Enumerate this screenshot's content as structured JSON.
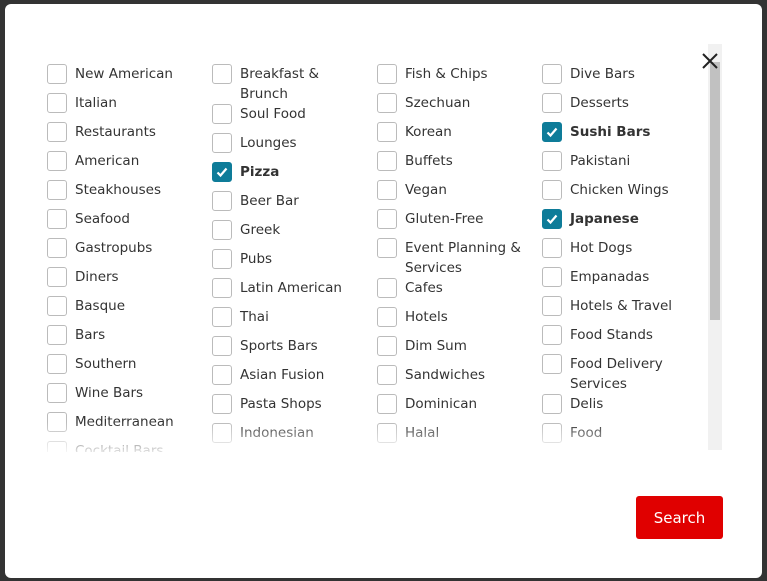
{
  "colors": {
    "accent": "#0e7c99",
    "search": "#e00000"
  },
  "columns": [
    [
      {
        "label": "New American",
        "checked": false
      },
      {
        "label": "Italian",
        "checked": false
      },
      {
        "label": "Restaurants",
        "checked": false
      },
      {
        "label": "American",
        "checked": false
      },
      {
        "label": "Steakhouses",
        "checked": false
      },
      {
        "label": "Seafood",
        "checked": false
      },
      {
        "label": "Gastropubs",
        "checked": false
      },
      {
        "label": "Diners",
        "checked": false
      },
      {
        "label": "Basque",
        "checked": false
      },
      {
        "label": "Bars",
        "checked": false
      },
      {
        "label": "Southern",
        "checked": false
      },
      {
        "label": "Wine Bars",
        "checked": false
      },
      {
        "label": "Mediterranean",
        "checked": false
      },
      {
        "label": "Cocktail Bars",
        "checked": false
      }
    ],
    [
      {
        "label": "Breakfast & Brunch",
        "checked": false
      },
      {
        "label": "Soul Food",
        "checked": false
      },
      {
        "label": "Lounges",
        "checked": false
      },
      {
        "label": "Pizza",
        "checked": true
      },
      {
        "label": "Beer Bar",
        "checked": false
      },
      {
        "label": "Greek",
        "checked": false
      },
      {
        "label": "Pubs",
        "checked": false
      },
      {
        "label": "Latin American",
        "checked": false
      },
      {
        "label": "Thai",
        "checked": false
      },
      {
        "label": "Sports Bars",
        "checked": false
      },
      {
        "label": "Asian Fusion",
        "checked": false
      },
      {
        "label": "Pasta Shops",
        "checked": false
      },
      {
        "label": "Indonesian",
        "checked": false
      }
    ],
    [
      {
        "label": "Fish & Chips",
        "checked": false
      },
      {
        "label": "Szechuan",
        "checked": false
      },
      {
        "label": "Korean",
        "checked": false
      },
      {
        "label": "Buffets",
        "checked": false
      },
      {
        "label": "Vegan",
        "checked": false
      },
      {
        "label": "Gluten-Free",
        "checked": false
      },
      {
        "label": "Event Planning & Services",
        "checked": false
      },
      {
        "label": "Cafes",
        "checked": false
      },
      {
        "label": "Hotels",
        "checked": false
      },
      {
        "label": "Dim Sum",
        "checked": false
      },
      {
        "label": "Sandwiches",
        "checked": false
      },
      {
        "label": "Dominican",
        "checked": false
      },
      {
        "label": "Halal",
        "checked": false
      }
    ],
    [
      {
        "label": "Dive Bars",
        "checked": false
      },
      {
        "label": "Desserts",
        "checked": false
      },
      {
        "label": "Sushi Bars",
        "checked": true
      },
      {
        "label": "Pakistani",
        "checked": false
      },
      {
        "label": "Chicken Wings",
        "checked": false
      },
      {
        "label": "Japanese",
        "checked": true
      },
      {
        "label": "Hot Dogs",
        "checked": false
      },
      {
        "label": "Empanadas",
        "checked": false
      },
      {
        "label": "Hotels & Travel",
        "checked": false
      },
      {
        "label": "Food Stands",
        "checked": false
      },
      {
        "label": "Food Delivery Services",
        "checked": false
      },
      {
        "label": "Delis",
        "checked": false
      },
      {
        "label": "Food",
        "checked": false
      }
    ]
  ],
  "search_label": "Search",
  "close_icon": "close-icon",
  "check_icon": "checkmark-icon"
}
